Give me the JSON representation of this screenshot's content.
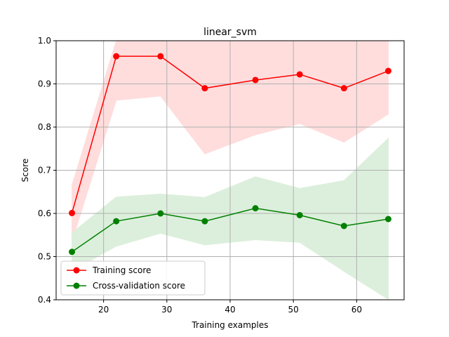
{
  "chart_data": {
    "type": "line",
    "title": "linear_svm",
    "xlabel": "Training examples",
    "ylabel": "Score",
    "xlim": [
      12.5,
      67.5
    ],
    "ylim": [
      0.4,
      1.0
    ],
    "xticks": [
      20,
      30,
      40,
      50,
      60
    ],
    "yticks": [
      0.4,
      0.5,
      0.6,
      0.7,
      0.8,
      0.9,
      1.0
    ],
    "xtick_labels": [
      "20",
      "30",
      "40",
      "50",
      "60"
    ],
    "ytick_labels": [
      "0.4",
      "0.5",
      "0.6",
      "0.7",
      "0.8",
      "0.9",
      "1.0"
    ],
    "grid": true,
    "legend_position": "lower-left",
    "x": [
      15,
      22,
      29,
      36,
      44,
      51,
      58,
      65
    ],
    "series": [
      {
        "name": "Training score",
        "color": "#ff0000",
        "values": [
          0.601,
          0.964,
          0.964,
          0.89,
          0.909,
          0.922,
          0.89,
          0.93
        ],
        "band_upper": [
          0.665,
          1.0,
          1.0,
          1.0,
          1.0,
          1.0,
          1.0,
          1.0
        ],
        "band_lower": [
          0.535,
          0.862,
          0.872,
          0.738,
          0.782,
          0.808,
          0.765,
          0.83
        ],
        "band_color": "#ffdddd"
      },
      {
        "name": "Cross-validation score",
        "color": "#008000",
        "values": [
          0.511,
          0.582,
          0.6,
          0.582,
          0.612,
          0.596,
          0.571,
          0.587
        ],
        "band_upper": [
          0.555,
          0.638,
          0.645,
          0.637,
          0.685,
          0.658,
          0.676,
          0.774
        ],
        "band_lower": [
          0.467,
          0.524,
          0.554,
          0.527,
          0.539,
          0.533,
          0.466,
          0.401
        ],
        "band_color": "#dcefdc"
      }
    ]
  }
}
